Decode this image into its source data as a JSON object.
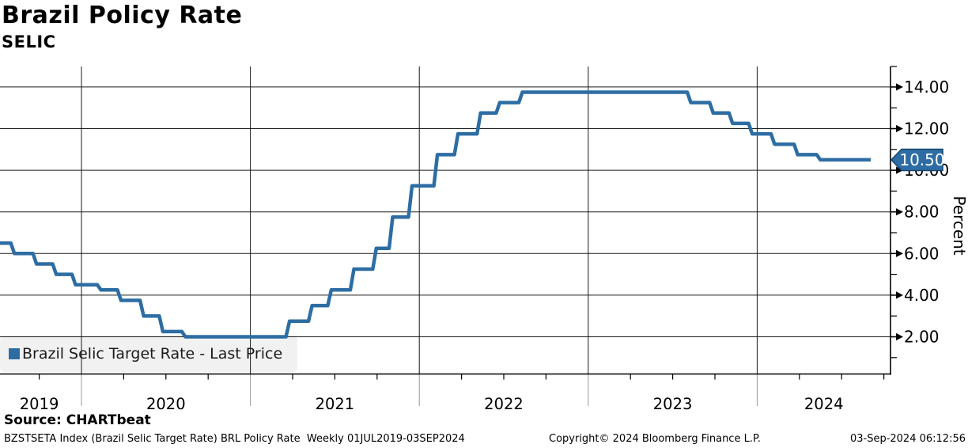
{
  "title": "Brazil Policy Rate",
  "subtitle": "SELIC",
  "source_line": "Source: CHARTbeat",
  "footer": {
    "left": "BZSTSETA Index (Brazil Selic Target Rate) BRL Policy Rate  Weekly 01JUL2019-03SEP2024",
    "center": "Copyright© 2024 Bloomberg Finance L.P.",
    "right": "03-Sep-2024 06:12:56"
  },
  "legend": {
    "marker_color": "#2d6da3",
    "label": "Brazil Selic Target Rate - Last Price"
  },
  "last_price_badge": {
    "value": "10.50",
    "bg": "#2d6da3",
    "border": "#17446e",
    "text_color": "#ffffff"
  },
  "colors": {
    "line": "#2d6da3",
    "grid": "#1a1a1a",
    "axis": "#000000",
    "tick_label": "#000000",
    "year_separator_below_axis": "#999999"
  },
  "chart_data": {
    "type": "line",
    "line_style": "step-after",
    "title": "Brazil Policy Rate",
    "subtitle": "SELIC",
    "ylabel": "Percent",
    "xlabel": "",
    "grid": true,
    "legend_position": "bottom-left",
    "x_range": [
      "2019-07-01",
      "2024-09-03"
    ],
    "frequency": "Weekly",
    "ylim": [
      0.23,
      14.95
    ],
    "last_price": 10.5,
    "y_ticks": [
      {
        "value": 2,
        "label": "2.00"
      },
      {
        "value": 4,
        "label": "4.00"
      },
      {
        "value": 6,
        "label": "6.00"
      },
      {
        "value": 8,
        "label": "8.00"
      },
      {
        "value": 10,
        "label": "10.00"
      },
      {
        "value": 12,
        "label": "12.00"
      },
      {
        "value": 14,
        "label": "14.00"
      }
    ],
    "x_tick_labels": [
      "2019",
      "2020",
      "2021",
      "2022",
      "2023",
      "2024"
    ],
    "series": [
      {
        "name": "Brazil Selic Target Rate - Last Price",
        "color": "#2d6da3",
        "points": [
          [
            "2019-07-01",
            6.5
          ],
          [
            "2019-07-31",
            6.0
          ],
          [
            "2019-09-18",
            5.5
          ],
          [
            "2019-10-30",
            5.0
          ],
          [
            "2019-12-11",
            4.5
          ],
          [
            "2020-02-05",
            4.25
          ],
          [
            "2020-03-18",
            3.75
          ],
          [
            "2020-05-06",
            3.0
          ],
          [
            "2020-06-17",
            2.25
          ],
          [
            "2020-08-05",
            2.0
          ],
          [
            "2021-03-17",
            2.75
          ],
          [
            "2021-05-05",
            3.5
          ],
          [
            "2021-06-16",
            4.25
          ],
          [
            "2021-08-04",
            5.25
          ],
          [
            "2021-09-22",
            6.25
          ],
          [
            "2021-10-27",
            7.75
          ],
          [
            "2021-12-08",
            9.25
          ],
          [
            "2022-02-02",
            10.75
          ],
          [
            "2022-03-16",
            11.75
          ],
          [
            "2022-05-04",
            12.75
          ],
          [
            "2022-06-15",
            13.25
          ],
          [
            "2022-08-03",
            13.75
          ],
          [
            "2023-08-02",
            13.25
          ],
          [
            "2023-09-20",
            12.75
          ],
          [
            "2023-11-01",
            12.25
          ],
          [
            "2023-12-13",
            11.75
          ],
          [
            "2024-01-31",
            11.25
          ],
          [
            "2024-03-20",
            10.75
          ],
          [
            "2024-05-08",
            10.5
          ],
          [
            "2024-09-03",
            10.5
          ]
        ]
      }
    ]
  }
}
